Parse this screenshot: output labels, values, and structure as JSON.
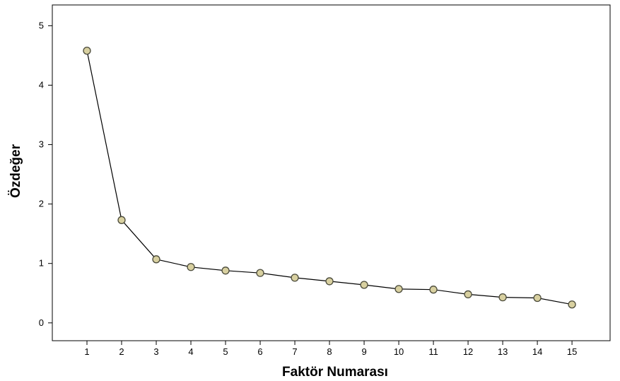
{
  "chart_data": {
    "type": "line",
    "title": "",
    "xlabel": "Faktör Numarası",
    "ylabel": "Özdeğer",
    "x": [
      1,
      2,
      3,
      4,
      5,
      6,
      7,
      8,
      9,
      10,
      11,
      12,
      13,
      14,
      15
    ],
    "series": [
      {
        "values": [
          4.58,
          1.73,
          1.07,
          0.94,
          0.88,
          0.84,
          0.76,
          0.7,
          0.64,
          0.57,
          0.56,
          0.48,
          0.43,
          0.42,
          0.31
        ]
      }
    ],
    "xticks": [
      "1",
      "2",
      "3",
      "4",
      "5",
      "6",
      "7",
      "8",
      "9",
      "10",
      "11",
      "12",
      "13",
      "14",
      "15"
    ],
    "yticks": [
      "0",
      "1",
      "2",
      "3",
      "4",
      "5"
    ],
    "ylim": [
      -0.3,
      5.35
    ],
    "xlim": [
      0,
      16.1
    ],
    "grid": false,
    "colors": {
      "line": "#000000",
      "marker_fill": "#d8d0a0",
      "marker_stroke": "#4a4a3a",
      "frame": "#000000"
    }
  }
}
